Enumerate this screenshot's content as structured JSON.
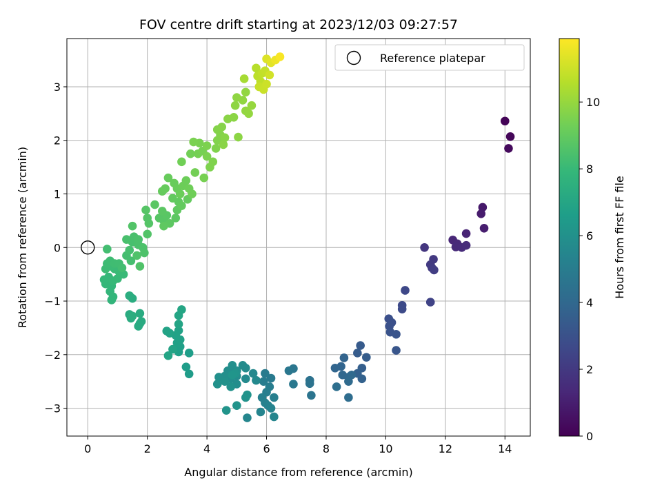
{
  "chart_data": {
    "type": "scatter",
    "title": "FOV centre drift starting at 2023/12/03 09:27:57",
    "xlabel": "Angular distance from reference (arcmin)",
    "ylabel": "Rotation from reference (arcmin)",
    "xlim": [
      -0.7,
      14.85
    ],
    "ylim": [
      -3.52,
      3.9
    ],
    "xticks": [
      0,
      2,
      4,
      6,
      8,
      10,
      12,
      14
    ],
    "yticks": [
      -3,
      -2,
      -1,
      0,
      1,
      2,
      3
    ],
    "grid": true,
    "legend_placement": "top-right",
    "legend_label": "Reference platepar",
    "reference_point": [
      0,
      0
    ],
    "colorbar": {
      "label": "Hours from first FF file",
      "range": [
        0,
        11.9
      ],
      "ticks": [
        0,
        2,
        4,
        6,
        8,
        10
      ],
      "colormap": "viridis"
    },
    "colormap_stops": [
      "#440154",
      "#482878",
      "#3e4989",
      "#31688e",
      "#26828e",
      "#1f9e89",
      "#35b779",
      "#6ece58",
      "#b5de2b",
      "#fde725"
    ],
    "points": [
      {
        "x": 14.0,
        "y": 2.36,
        "t": 0.1
      },
      {
        "x": 14.18,
        "y": 2.07,
        "t": 0.2
      },
      {
        "x": 14.12,
        "y": 1.85,
        "t": 0.3
      },
      {
        "x": 13.25,
        "y": 0.75,
        "t": 0.8
      },
      {
        "x": 13.2,
        "y": 0.63,
        "t": 0.9
      },
      {
        "x": 13.3,
        "y": 0.36,
        "t": 1.0
      },
      {
        "x": 12.7,
        "y": 0.26,
        "t": 1.2
      },
      {
        "x": 12.25,
        "y": 0.14,
        "t": 1.3
      },
      {
        "x": 12.4,
        "y": 0.07,
        "t": 1.35
      },
      {
        "x": 12.35,
        "y": 0.01,
        "t": 1.4
      },
      {
        "x": 12.55,
        "y": 0.0,
        "t": 1.45
      },
      {
        "x": 12.7,
        "y": 0.04,
        "t": 1.5
      },
      {
        "x": 11.3,
        "y": 0.0,
        "t": 1.9
      },
      {
        "x": 11.6,
        "y": -0.22,
        "t": 2.0
      },
      {
        "x": 11.5,
        "y": -0.32,
        "t": 2.05
      },
      {
        "x": 11.55,
        "y": -0.38,
        "t": 2.1
      },
      {
        "x": 11.62,
        "y": -0.42,
        "t": 2.15
      },
      {
        "x": 11.5,
        "y": -1.02,
        "t": 2.4
      },
      {
        "x": 10.65,
        "y": -0.8,
        "t": 2.6
      },
      {
        "x": 10.55,
        "y": -1.08,
        "t": 2.7
      },
      {
        "x": 10.55,
        "y": -1.15,
        "t": 2.75
      },
      {
        "x": 10.1,
        "y": -1.33,
        "t": 2.9
      },
      {
        "x": 10.2,
        "y": -1.4,
        "t": 2.95
      },
      {
        "x": 10.12,
        "y": -1.47,
        "t": 3.0
      },
      {
        "x": 10.15,
        "y": -1.58,
        "t": 3.05
      },
      {
        "x": 10.35,
        "y": -1.62,
        "t": 3.1
      },
      {
        "x": 10.35,
        "y": -1.92,
        "t": 3.2
      },
      {
        "x": 9.15,
        "y": -1.83,
        "t": 3.4
      },
      {
        "x": 9.05,
        "y": -1.97,
        "t": 3.45
      },
      {
        "x": 9.35,
        "y": -2.05,
        "t": 3.5
      },
      {
        "x": 9.2,
        "y": -2.25,
        "t": 3.6
      },
      {
        "x": 9.05,
        "y": -2.35,
        "t": 3.65
      },
      {
        "x": 9.2,
        "y": -2.45,
        "t": 3.7
      },
      {
        "x": 8.6,
        "y": -2.06,
        "t": 3.8
      },
      {
        "x": 8.5,
        "y": -2.22,
        "t": 3.85
      },
      {
        "x": 8.3,
        "y": -2.25,
        "t": 3.9
      },
      {
        "x": 8.55,
        "y": -2.38,
        "t": 3.95
      },
      {
        "x": 8.75,
        "y": -2.42,
        "t": 4.0
      },
      {
        "x": 8.85,
        "y": -2.38,
        "t": 4.05
      },
      {
        "x": 8.75,
        "y": -2.5,
        "t": 4.1
      },
      {
        "x": 8.75,
        "y": -2.8,
        "t": 4.2
      },
      {
        "x": 8.35,
        "y": -2.6,
        "t": 4.3
      },
      {
        "x": 7.45,
        "y": -2.48,
        "t": 4.5
      },
      {
        "x": 7.45,
        "y": -2.54,
        "t": 4.55
      },
      {
        "x": 7.5,
        "y": -2.76,
        "t": 4.6
      },
      {
        "x": 6.9,
        "y": -2.26,
        "t": 4.7
      },
      {
        "x": 6.75,
        "y": -2.3,
        "t": 4.75
      },
      {
        "x": 6.9,
        "y": -2.55,
        "t": 4.8
      },
      {
        "x": 6.15,
        "y": -2.44,
        "t": 4.9
      },
      {
        "x": 5.95,
        "y": -2.35,
        "t": 4.95
      },
      {
        "x": 5.9,
        "y": -2.5,
        "t": 5.0
      },
      {
        "x": 6.1,
        "y": -2.6,
        "t": 5.05
      },
      {
        "x": 6.0,
        "y": -2.7,
        "t": 5.1
      },
      {
        "x": 6.25,
        "y": -2.8,
        "t": 5.15
      },
      {
        "x": 5.85,
        "y": -2.8,
        "t": 5.2
      },
      {
        "x": 5.95,
        "y": -2.9,
        "t": 5.25
      },
      {
        "x": 6.05,
        "y": -2.95,
        "t": 5.3
      },
      {
        "x": 6.15,
        "y": -3.0,
        "t": 5.35
      },
      {
        "x": 5.8,
        "y": -3.07,
        "t": 5.4
      },
      {
        "x": 6.25,
        "y": -3.16,
        "t": 5.45
      },
      {
        "x": 5.35,
        "y": -3.18,
        "t": 5.5
      },
      {
        "x": 5.55,
        "y": -2.35,
        "t": 5.55
      },
      {
        "x": 5.65,
        "y": -2.48,
        "t": 5.6
      },
      {
        "x": 5.3,
        "y": -2.45,
        "t": 5.65
      },
      {
        "x": 5.2,
        "y": -2.2,
        "t": 5.7
      },
      {
        "x": 5.3,
        "y": -2.25,
        "t": 5.72
      },
      {
        "x": 5.0,
        "y": -2.4,
        "t": 5.75
      },
      {
        "x": 4.9,
        "y": -2.3,
        "t": 5.78
      },
      {
        "x": 4.8,
        "y": -2.45,
        "t": 5.8
      },
      {
        "x": 5.0,
        "y": -2.55,
        "t": 5.82
      },
      {
        "x": 4.7,
        "y": -2.3,
        "t": 5.85
      },
      {
        "x": 4.6,
        "y": -2.4,
        "t": 5.88
      },
      {
        "x": 4.85,
        "y": -2.2,
        "t": 5.9
      },
      {
        "x": 5.0,
        "y": -2.3,
        "t": 5.92
      },
      {
        "x": 4.4,
        "y": -2.42,
        "t": 5.95
      },
      {
        "x": 4.35,
        "y": -2.55,
        "t": 5.98
      },
      {
        "x": 4.6,
        "y": -2.5,
        "t": 6.0
      },
      {
        "x": 4.8,
        "y": -2.6,
        "t": 6.02
      },
      {
        "x": 5.3,
        "y": -2.8,
        "t": 6.05
      },
      {
        "x": 5.35,
        "y": -2.75,
        "t": 6.07
      },
      {
        "x": 5.0,
        "y": -2.95,
        "t": 6.1
      },
      {
        "x": 4.65,
        "y": -3.04,
        "t": 6.12
      },
      {
        "x": 4.95,
        "y": -2.35,
        "t": 6.15
      },
      {
        "x": 4.85,
        "y": -2.38,
        "t": 6.17
      },
      {
        "x": 3.4,
        "y": -2.36,
        "t": 6.5
      },
      {
        "x": 3.3,
        "y": -2.23,
        "t": 6.55
      },
      {
        "x": 3.4,
        "y": -1.97,
        "t": 6.6
      },
      {
        "x": 3.05,
        "y": -1.95,
        "t": 6.7
      },
      {
        "x": 3.1,
        "y": -1.85,
        "t": 6.72
      },
      {
        "x": 3.0,
        "y": -1.78,
        "t": 6.75
      },
      {
        "x": 3.1,
        "y": -1.72,
        "t": 6.78
      },
      {
        "x": 2.95,
        "y": -1.64,
        "t": 6.8
      },
      {
        "x": 3.05,
        "y": -1.55,
        "t": 6.82
      },
      {
        "x": 2.75,
        "y": -1.6,
        "t": 6.85
      },
      {
        "x": 2.65,
        "y": -1.56,
        "t": 6.88
      },
      {
        "x": 2.85,
        "y": -1.9,
        "t": 6.9
      },
      {
        "x": 2.7,
        "y": -2.02,
        "t": 6.92
      },
      {
        "x": 3.05,
        "y": -1.43,
        "t": 6.95
      },
      {
        "x": 3.05,
        "y": -1.27,
        "t": 6.97
      },
      {
        "x": 3.15,
        "y": -1.16,
        "t": 7.0
      },
      {
        "x": 1.75,
        "y": -1.42,
        "t": 7.2
      },
      {
        "x": 1.7,
        "y": -1.47,
        "t": 7.22
      },
      {
        "x": 1.8,
        "y": -1.38,
        "t": 7.25
      },
      {
        "x": 1.75,
        "y": -1.23,
        "t": 7.28
      },
      {
        "x": 1.4,
        "y": -1.25,
        "t": 7.3
      },
      {
        "x": 1.45,
        "y": -1.32,
        "t": 7.32
      },
      {
        "x": 1.5,
        "y": -0.95,
        "t": 7.35
      },
      {
        "x": 1.4,
        "y": -0.9,
        "t": 7.38
      },
      {
        "x": 1.5,
        "y": -1.28,
        "t": 7.4
      },
      {
        "x": 0.8,
        "y": -0.98,
        "t": 7.8
      },
      {
        "x": 0.85,
        "y": -0.92,
        "t": 7.82
      },
      {
        "x": 0.75,
        "y": -0.82,
        "t": 7.85
      },
      {
        "x": 0.8,
        "y": -0.72,
        "t": 7.88
      },
      {
        "x": 0.6,
        "y": -0.68,
        "t": 7.9
      },
      {
        "x": 0.55,
        "y": -0.6,
        "t": 7.92
      },
      {
        "x": 0.7,
        "y": -0.55,
        "t": 7.95
      },
      {
        "x": 0.85,
        "y": -0.62,
        "t": 7.97
      },
      {
        "x": 1.0,
        "y": -0.58,
        "t": 8.0
      },
      {
        "x": 1.2,
        "y": -0.5,
        "t": 8.02
      },
      {
        "x": 1.05,
        "y": -0.45,
        "t": 8.05
      },
      {
        "x": 0.9,
        "y": -0.4,
        "t": 8.07
      },
      {
        "x": 0.75,
        "y": -0.35,
        "t": 8.1
      },
      {
        "x": 0.6,
        "y": -0.4,
        "t": 8.12
      },
      {
        "x": 0.65,
        "y": -0.3,
        "t": 8.15
      },
      {
        "x": 0.75,
        "y": -0.25,
        "t": 8.17
      },
      {
        "x": 0.9,
        "y": -0.3,
        "t": 8.2
      },
      {
        "x": 1.05,
        "y": -0.3,
        "t": 8.22
      },
      {
        "x": 1.15,
        "y": -0.38,
        "t": 8.25
      },
      {
        "x": 0.65,
        "y": -0.03,
        "t": 8.27
      },
      {
        "x": 1.3,
        "y": -0.15,
        "t": 8.3
      },
      {
        "x": 1.45,
        "y": -0.25,
        "t": 8.32
      },
      {
        "x": 1.4,
        "y": -0.05,
        "t": 8.35
      },
      {
        "x": 1.5,
        "y": 0.1,
        "t": 8.37
      },
      {
        "x": 1.3,
        "y": 0.15,
        "t": 8.4
      },
      {
        "x": 1.55,
        "y": 0.2,
        "t": 8.42
      },
      {
        "x": 1.7,
        "y": 0.05,
        "t": 8.45
      },
      {
        "x": 1.7,
        "y": 0.15,
        "t": 8.47
      },
      {
        "x": 1.85,
        "y": 0.0,
        "t": 8.5
      },
      {
        "x": 1.9,
        "y": -0.1,
        "t": 8.52
      },
      {
        "x": 1.65,
        "y": -0.15,
        "t": 8.55
      },
      {
        "x": 1.75,
        "y": -0.35,
        "t": 8.57
      },
      {
        "x": 1.5,
        "y": 0.4,
        "t": 8.6
      },
      {
        "x": 2.0,
        "y": 0.25,
        "t": 8.62
      },
      {
        "x": 2.0,
        "y": 0.55,
        "t": 8.65
      },
      {
        "x": 2.05,
        "y": 0.45,
        "t": 8.67
      },
      {
        "x": 1.95,
        "y": 0.7,
        "t": 8.7
      },
      {
        "x": 2.4,
        "y": 0.55,
        "t": 8.72
      },
      {
        "x": 2.55,
        "y": 0.5,
        "t": 8.75
      },
      {
        "x": 2.65,
        "y": 0.6,
        "t": 8.77
      },
      {
        "x": 2.25,
        "y": 0.8,
        "t": 8.8
      },
      {
        "x": 2.5,
        "y": 0.68,
        "t": 8.82
      },
      {
        "x": 2.75,
        "y": 0.45,
        "t": 8.85
      },
      {
        "x": 2.95,
        "y": 0.55,
        "t": 8.87
      },
      {
        "x": 2.55,
        "y": 0.4,
        "t": 8.9
      },
      {
        "x": 3.0,
        "y": 0.7,
        "t": 8.92
      },
      {
        "x": 3.05,
        "y": 0.85,
        "t": 8.95
      },
      {
        "x": 2.85,
        "y": 0.92,
        "t": 8.97
      },
      {
        "x": 3.15,
        "y": 0.78,
        "t": 9.0
      },
      {
        "x": 3.35,
        "y": 0.9,
        "t": 9.02
      },
      {
        "x": 2.5,
        "y": 1.05,
        "t": 9.05
      },
      {
        "x": 2.6,
        "y": 1.1,
        "t": 9.07
      },
      {
        "x": 2.7,
        "y": 1.3,
        "t": 9.1
      },
      {
        "x": 2.9,
        "y": 1.2,
        "t": 9.12
      },
      {
        "x": 3.0,
        "y": 1.1,
        "t": 9.15
      },
      {
        "x": 3.1,
        "y": 1.0,
        "t": 9.17
      },
      {
        "x": 3.2,
        "y": 1.15,
        "t": 9.2
      },
      {
        "x": 3.3,
        "y": 1.25,
        "t": 9.22
      },
      {
        "x": 3.4,
        "y": 1.1,
        "t": 9.25
      },
      {
        "x": 3.5,
        "y": 1.0,
        "t": 9.27
      },
      {
        "x": 3.15,
        "y": 1.6,
        "t": 9.3
      },
      {
        "x": 3.45,
        "y": 1.75,
        "t": 9.32
      },
      {
        "x": 3.6,
        "y": 1.4,
        "t": 9.35
      },
      {
        "x": 3.7,
        "y": 1.75,
        "t": 9.37
      },
      {
        "x": 3.85,
        "y": 1.8,
        "t": 9.4
      },
      {
        "x": 3.9,
        "y": 1.3,
        "t": 9.42
      },
      {
        "x": 3.75,
        "y": 1.95,
        "t": 9.45
      },
      {
        "x": 3.55,
        "y": 1.97,
        "t": 9.47
      },
      {
        "x": 4.0,
        "y": 1.7,
        "t": 9.5
      },
      {
        "x": 4.0,
        "y": 1.9,
        "t": 9.52
      },
      {
        "x": 4.1,
        "y": 1.5,
        "t": 9.55
      },
      {
        "x": 4.2,
        "y": 1.6,
        "t": 9.57
      },
      {
        "x": 4.3,
        "y": 1.85,
        "t": 9.6
      },
      {
        "x": 4.35,
        "y": 2.0,
        "t": 9.62
      },
      {
        "x": 4.45,
        "y": 2.1,
        "t": 9.65
      },
      {
        "x": 4.35,
        "y": 2.2,
        "t": 9.67
      },
      {
        "x": 4.5,
        "y": 2.25,
        "t": 9.7
      },
      {
        "x": 4.6,
        "y": 2.05,
        "t": 9.72
      },
      {
        "x": 4.55,
        "y": 1.92,
        "t": 9.75
      },
      {
        "x": 4.7,
        "y": 2.4,
        "t": 9.77
      },
      {
        "x": 4.9,
        "y": 2.43,
        "t": 9.8
      },
      {
        "x": 5.05,
        "y": 2.06,
        "t": 9.82
      },
      {
        "x": 4.95,
        "y": 2.65,
        "t": 9.85
      },
      {
        "x": 5.0,
        "y": 2.8,
        "t": 9.87
      },
      {
        "x": 5.2,
        "y": 2.75,
        "t": 9.9
      },
      {
        "x": 5.3,
        "y": 2.9,
        "t": 9.92
      },
      {
        "x": 5.3,
        "y": 2.55,
        "t": 9.95
      },
      {
        "x": 5.4,
        "y": 2.5,
        "t": 9.97
      },
      {
        "x": 5.5,
        "y": 2.65,
        "t": 10.0
      },
      {
        "x": 5.25,
        "y": 3.15,
        "t": 10.3
      },
      {
        "x": 5.65,
        "y": 3.35,
        "t": 10.6
      },
      {
        "x": 5.7,
        "y": 3.2,
        "t": 10.7
      },
      {
        "x": 5.8,
        "y": 3.1,
        "t": 10.75
      },
      {
        "x": 5.85,
        "y": 3.25,
        "t": 10.8
      },
      {
        "x": 5.95,
        "y": 3.3,
        "t": 10.85
      },
      {
        "x": 5.75,
        "y": 3.0,
        "t": 10.9
      },
      {
        "x": 5.9,
        "y": 2.95,
        "t": 10.95
      },
      {
        "x": 6.0,
        "y": 3.05,
        "t": 11.0
      },
      {
        "x": 6.1,
        "y": 3.22,
        "t": 11.1
      },
      {
        "x": 6.0,
        "y": 3.52,
        "t": 11.3
      },
      {
        "x": 6.15,
        "y": 3.45,
        "t": 11.4
      },
      {
        "x": 6.3,
        "y": 3.5,
        "t": 11.6
      },
      {
        "x": 6.45,
        "y": 3.56,
        "t": 11.8
      }
    ]
  }
}
